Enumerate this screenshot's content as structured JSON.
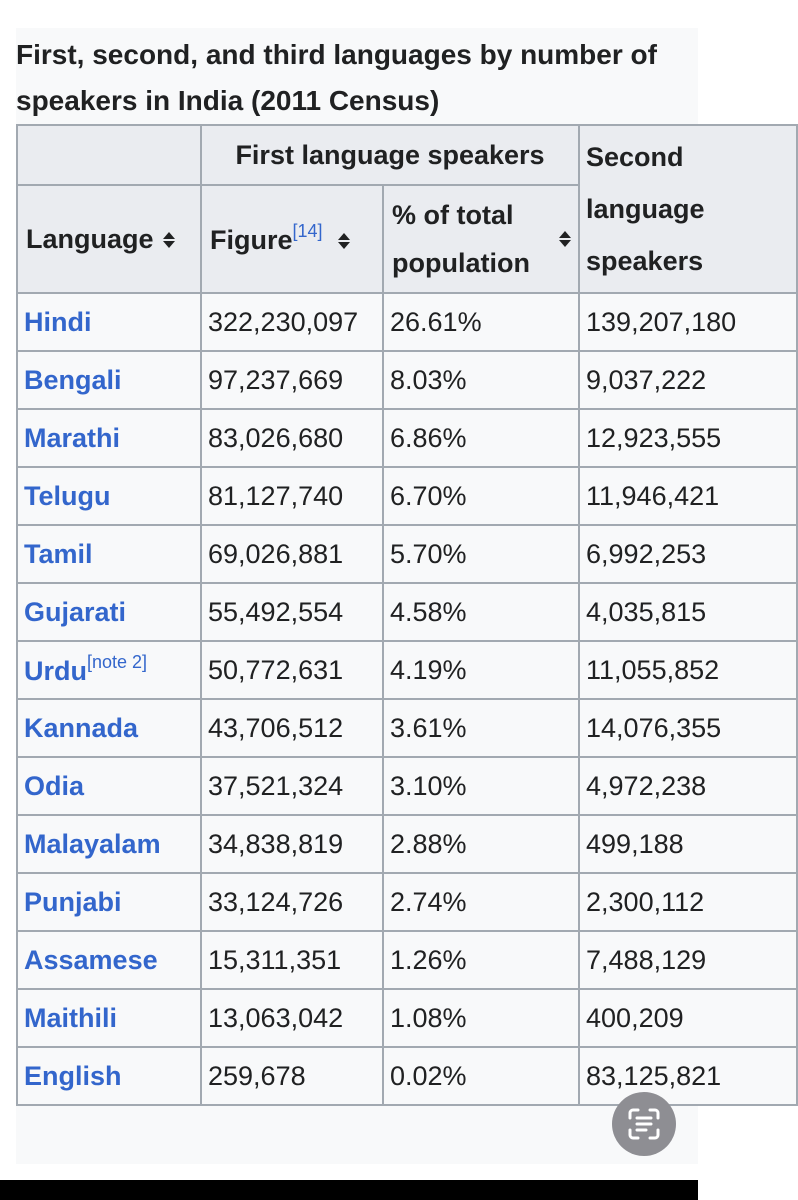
{
  "caption": "First, second, and third languages by number of speakers in India (2011 Census)",
  "header": {
    "group_first": "First language speakers",
    "group_second": "Second language speakers",
    "col_language": "Language",
    "col_figure": "Figure",
    "col_figure_ref": "[14]",
    "col_pct": "% of total population"
  },
  "rows": [
    {
      "language": "Hindi",
      "note": "",
      "figure": "322,230,097",
      "pct": "26.61%",
      "second": "139,207,180"
    },
    {
      "language": "Bengali",
      "note": "",
      "figure": "97,237,669",
      "pct": "8.03%",
      "second": "9,037,222"
    },
    {
      "language": "Marathi",
      "note": "",
      "figure": "83,026,680",
      "pct": "6.86%",
      "second": "12,923,555"
    },
    {
      "language": "Telugu",
      "note": "",
      "figure": "81,127,740",
      "pct": "6.70%",
      "second": "11,946,421"
    },
    {
      "language": "Tamil",
      "note": "",
      "figure": "69,026,881",
      "pct": "5.70%",
      "second": "6,992,253"
    },
    {
      "language": "Gujarati",
      "note": "",
      "figure": "55,492,554",
      "pct": "4.58%",
      "second": "4,035,815"
    },
    {
      "language": "Urdu",
      "note": "[note 2]",
      "figure": "50,772,631",
      "pct": "4.19%",
      "second": "11,055,852"
    },
    {
      "language": "Kannada",
      "note": "",
      "figure": "43,706,512",
      "pct": "3.61%",
      "second": "14,076,355"
    },
    {
      "language": "Odia",
      "note": "",
      "figure": "37,521,324",
      "pct": "3.10%",
      "second": "4,972,238"
    },
    {
      "language": "Malayalam",
      "note": "",
      "figure": "34,838,819",
      "pct": "2.88%",
      "second": "499,188"
    },
    {
      "language": "Punjabi",
      "note": "",
      "figure": "33,124,726",
      "pct": "2.74%",
      "second": "2,300,112"
    },
    {
      "language": "Assamese",
      "note": "",
      "figure": "15,311,351",
      "pct": "1.26%",
      "second": "7,488,129"
    },
    {
      "language": "Maithili",
      "note": "",
      "figure": "13,063,042",
      "pct": "1.08%",
      "second": "400,209"
    },
    {
      "language": "English",
      "note": "",
      "figure": "259,678",
      "pct": "0.02%",
      "second": "83,125,821"
    }
  ],
  "icons": {
    "sort": "sort-arrows-icon",
    "scan": "text-scan-icon"
  },
  "colors": {
    "link": "#3366cc",
    "header_bg": "#eaecf0",
    "border": "#a2a9b1"
  }
}
